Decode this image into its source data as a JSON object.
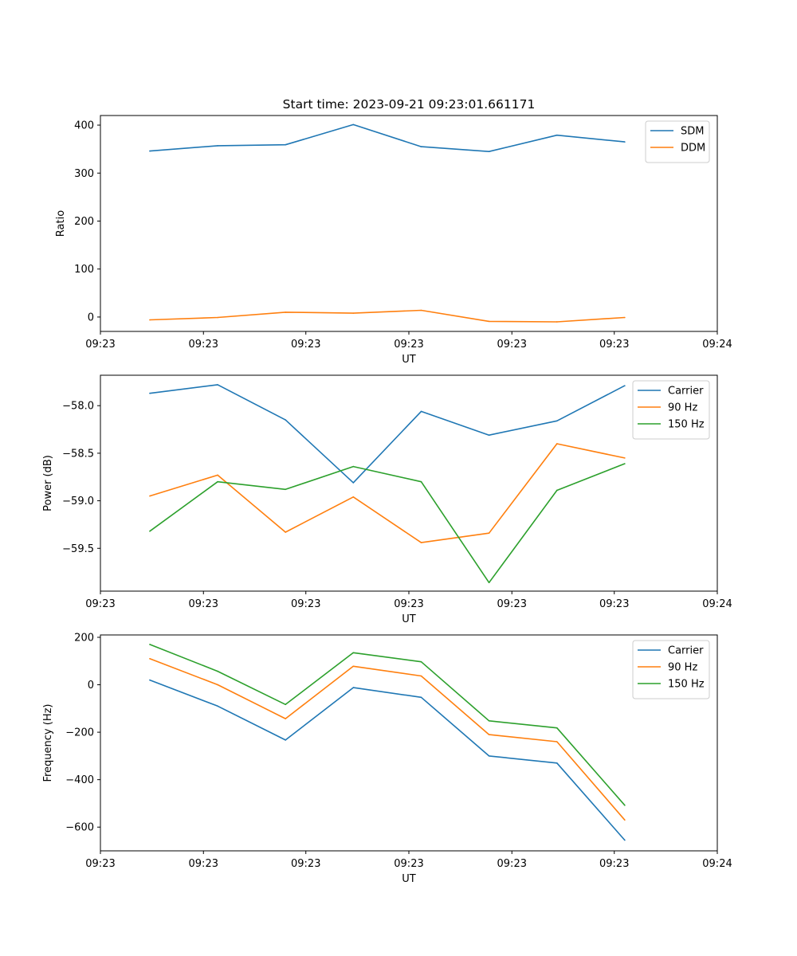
{
  "title": "Start time: 2023-09-21 09:23:01.661171",
  "colors": {
    "blue": "#1f77b4",
    "orange": "#ff7f0e",
    "green": "#2ca02c"
  },
  "chart_data": [
    {
      "type": "line",
      "name": "ratio-plot",
      "xlabel": "UT",
      "ylabel": "Ratio",
      "xlim": [
        0,
        1
      ],
      "ylim": [
        -30,
        420
      ],
      "x": [
        0.08,
        0.19,
        0.3,
        0.41,
        0.52,
        0.63,
        0.74,
        0.85
      ],
      "xticks": [
        0.0,
        0.167,
        0.333,
        0.5,
        0.667,
        0.833,
        1.0
      ],
      "xtick_labels": [
        "09:23",
        "09:23",
        "09:23",
        "09:23",
        "09:23",
        "09:23",
        "09:24"
      ],
      "yticks": [
        0,
        100,
        200,
        300,
        400
      ],
      "ytick_labels": [
        "0",
        "100",
        "200",
        "300",
        "400"
      ],
      "legend_position": "top-right",
      "series": [
        {
          "name": "SDM",
          "color": "#1f77b4",
          "values": [
            346,
            357,
            359,
            401,
            355,
            345,
            379,
            365
          ]
        },
        {
          "name": "DDM",
          "color": "#ff7f0e",
          "values": [
            -6,
            -1,
            10,
            8,
            14,
            -9,
            -10,
            -1
          ]
        }
      ]
    },
    {
      "type": "line",
      "name": "power-plot",
      "xlabel": "UT",
      "ylabel": "Power (dB)",
      "xlim": [
        0,
        1
      ],
      "ylim": [
        -59.95,
        -57.68
      ],
      "x": [
        0.08,
        0.19,
        0.3,
        0.41,
        0.52,
        0.63,
        0.74,
        0.85
      ],
      "xticks": [
        0.0,
        0.167,
        0.333,
        0.5,
        0.667,
        0.833,
        1.0
      ],
      "xtick_labels": [
        "09:23",
        "09:23",
        "09:23",
        "09:23",
        "09:23",
        "09:23",
        "09:24"
      ],
      "yticks": [
        -58.0,
        -58.5,
        -59.0,
        -59.5
      ],
      "ytick_labels": [
        "−58.0",
        "−58.5",
        "−59.0",
        "−59.5"
      ],
      "legend_position": "top-right",
      "series": [
        {
          "name": "Carrier",
          "color": "#1f77b4",
          "values": [
            -57.87,
            -57.78,
            -58.15,
            -58.81,
            -58.06,
            -58.31,
            -58.16,
            -57.79
          ]
        },
        {
          "name": "90 Hz",
          "color": "#ff7f0e",
          "values": [
            -58.95,
            -58.73,
            -59.33,
            -58.96,
            -59.44,
            -59.34,
            -58.4,
            -58.55
          ]
        },
        {
          "name": "150 Hz",
          "color": "#2ca02c",
          "values": [
            -59.32,
            -58.8,
            -58.88,
            -58.64,
            -58.8,
            -59.86,
            -58.89,
            -58.61
          ]
        }
      ]
    },
    {
      "type": "line",
      "name": "frequency-plot",
      "xlabel": "UT",
      "ylabel": "Frequency (Hz)",
      "xlim": [
        0,
        1
      ],
      "ylim": [
        -700,
        210
      ],
      "x": [
        0.08,
        0.19,
        0.3,
        0.41,
        0.52,
        0.63,
        0.74,
        0.85
      ],
      "xticks": [
        0.0,
        0.167,
        0.333,
        0.5,
        0.667,
        0.833,
        1.0
      ],
      "xtick_labels": [
        "09:23",
        "09:23",
        "09:23",
        "09:23",
        "09:23",
        "09:23",
        "09:24"
      ],
      "yticks": [
        200,
        0,
        -200,
        -400,
        -600
      ],
      "ytick_labels": [
        "200",
        "0",
        "−200",
        "−400",
        "−600"
      ],
      "legend_position": "top-right",
      "series": [
        {
          "name": "Carrier",
          "color": "#1f77b4",
          "values": [
            20,
            -90,
            -233,
            -12,
            -53,
            -300,
            -330,
            -655
          ]
        },
        {
          "name": "90 Hz",
          "color": "#ff7f0e",
          "values": [
            110,
            0,
            -143,
            78,
            37,
            -210,
            -240,
            -570
          ]
        },
        {
          "name": "150 Hz",
          "color": "#2ca02c",
          "values": [
            170,
            57,
            -83,
            135,
            97,
            -152,
            -182,
            -508
          ]
        }
      ]
    }
  ]
}
